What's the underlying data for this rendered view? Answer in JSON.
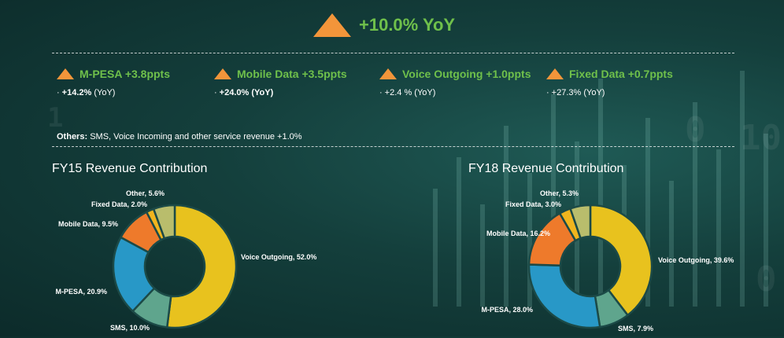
{
  "headline": {
    "text": "+10.0% YoY"
  },
  "metrics": [
    {
      "title": "M-PESA +3.8ppts",
      "value": "+14.2%",
      "suffix": "(YoY)"
    },
    {
      "title": "Mobile Data +3.5ppts",
      "value": "+24.0% (YoY)",
      "suffix": ""
    },
    {
      "title": "Voice Outgoing +1.0ppts",
      "value": "+2.4 % (YoY)",
      "suffix": ""
    },
    {
      "title": "Fixed Data +0.7ppts",
      "value": "+27.3% (YoY)",
      "suffix": ""
    }
  ],
  "others": {
    "label": "Others:",
    "text": "SMS, Voice Incoming and other service revenue +1.0%"
  },
  "colors": {
    "accent_orange": "#f2953a",
    "accent_green": "#6fc04b",
    "slices": {
      "Voice Outgoing": "#e8c21e",
      "SMS": "#5fa58d",
      "M-PESA": "#2898c7",
      "Mobile Data": "#ee7a2b",
      "Fixed Data": "#f0b51e",
      "Other": "#b9bd6c"
    }
  },
  "chart_data": [
    {
      "type": "pie",
      "title": "FY15 Revenue Contribution",
      "categories": [
        "Voice Outgoing",
        "SMS",
        "M-PESA",
        "Mobile Data",
        "Fixed Data",
        "Other"
      ],
      "values": [
        52.0,
        10.0,
        20.9,
        9.5,
        2.0,
        5.6
      ],
      "labels": [
        "Voice Outgoing, 52.0%",
        "SMS, 10.0%",
        "M-PESA, 20.9%",
        "Mobile Data, 9.5%",
        "Fixed Data, 2.0%",
        "Other, 5.6%"
      ]
    },
    {
      "type": "pie",
      "title": "FY18 Revenue Contribution",
      "categories": [
        "Voice Outgoing",
        "SMS",
        "M-PESA",
        "Mobile Data",
        "Fixed Data",
        "Other"
      ],
      "values": [
        39.6,
        7.9,
        28.0,
        16.2,
        3.0,
        5.3
      ],
      "labels": [
        "Voice Outgoing, 39.6%",
        "SMS, 7.9%",
        "M-PESA, 28.0%",
        "Mobile Data, 16.2%",
        "Fixed Data, 3.0%",
        "Other, 5.3%"
      ]
    }
  ]
}
